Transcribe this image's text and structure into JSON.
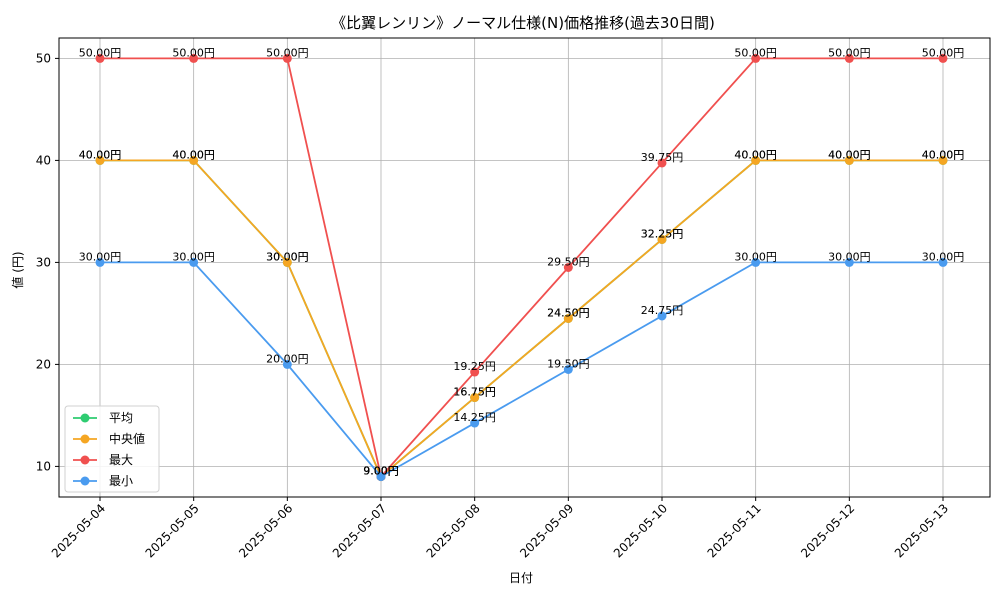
{
  "chart_data": {
    "type": "line",
    "title": "《比翼レンリン》ノーマル仕様(N)価格推移(過去30日間)",
    "xlabel": "日付",
    "ylabel": "値 (円)",
    "categories": [
      "2025-05-04",
      "2025-05-05",
      "2025-05-06",
      "2025-05-07",
      "2025-05-08",
      "2025-05-09",
      "2025-05-10",
      "2025-05-11",
      "2025-05-12",
      "2025-05-13"
    ],
    "ylim": [
      7,
      52
    ],
    "yticks": [
      10,
      20,
      30,
      40,
      50
    ],
    "grid": true,
    "legend_position": "lower-left",
    "value_suffix": "円",
    "series": [
      {
        "name": "平均",
        "color": "#2ecc71",
        "values": [
          40.0,
          40.0,
          30.0,
          9.0,
          16.75,
          24.5,
          32.25,
          40.0,
          40.0,
          40.0
        ]
      },
      {
        "name": "中央値",
        "color": "#f5a623",
        "values": [
          40.0,
          40.0,
          30.0,
          9.0,
          16.75,
          24.5,
          32.25,
          40.0,
          40.0,
          40.0
        ]
      },
      {
        "name": "最大",
        "color": "#f0504f",
        "values": [
          50.0,
          50.0,
          50.0,
          9.0,
          19.25,
          29.5,
          39.75,
          50.0,
          50.0,
          50.0
        ]
      },
      {
        "name": "最小",
        "color": "#4a9bef",
        "values": [
          30.0,
          30.0,
          20.0,
          9.0,
          14.25,
          19.5,
          24.75,
          30.0,
          30.0,
          30.0
        ]
      }
    ]
  }
}
